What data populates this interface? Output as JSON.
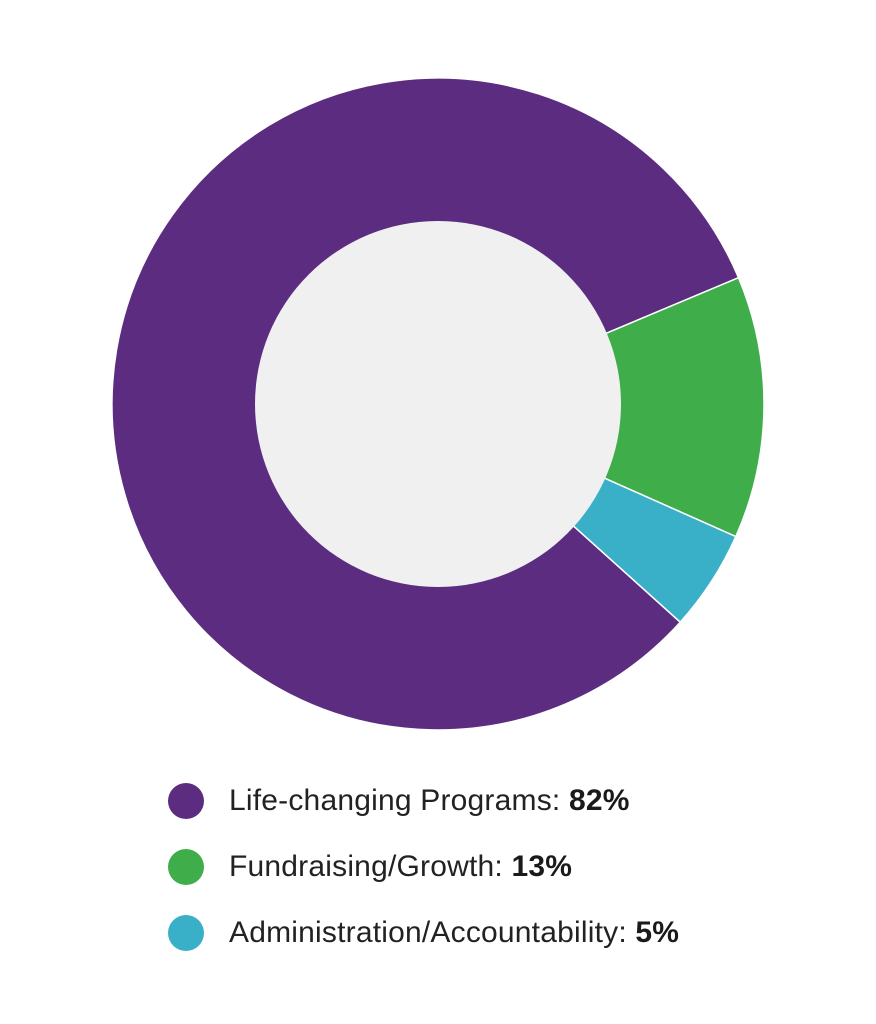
{
  "chart_data": {
    "type": "pie",
    "donut": true,
    "title": "",
    "slices": [
      {
        "label": "Life-changing Programs",
        "value": 82,
        "value_label": "82%",
        "color": "#5b2c80"
      },
      {
        "label": "Fundraising/Growth",
        "value": 13,
        "value_label": "13%",
        "color": "#3fae4a"
      },
      {
        "label": "Administration/Accountability",
        "value": 5,
        "value_label": "5%",
        "color": "#3ab0c8"
      }
    ],
    "hole_color": "#f0f0f0",
    "legend_position": "bottom",
    "separator": ": "
  }
}
